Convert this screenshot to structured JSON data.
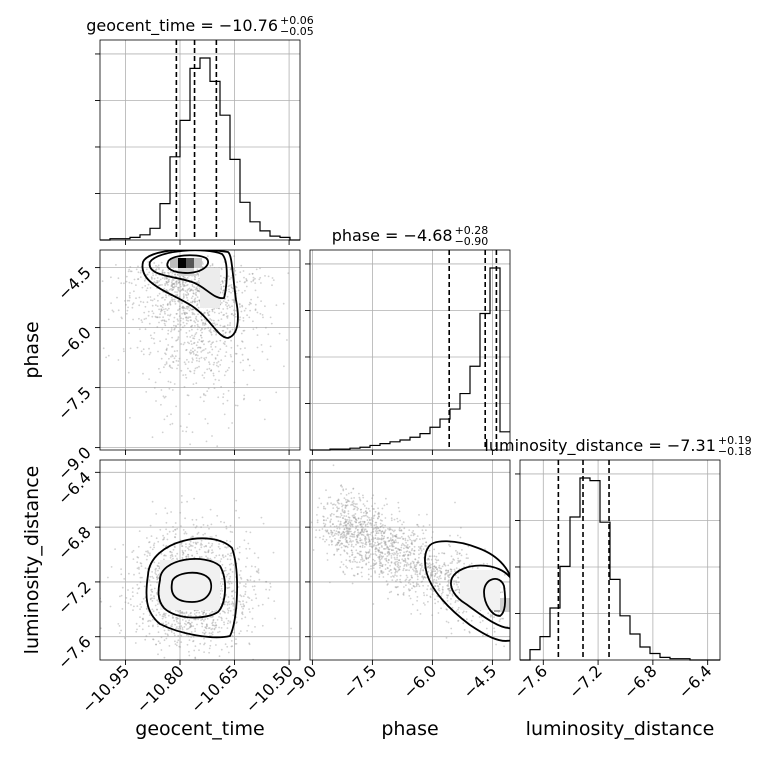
{
  "chart_data": {
    "type": "corner",
    "parameters": [
      "geocent_time",
      "phase",
      "luminosity_distance"
    ],
    "axis_labels": [
      "geocent_time",
      "phase",
      "luminosity_distance"
    ],
    "ranges": [
      [
        -11.02,
        -10.47
      ],
      [
        -9.06,
        -4.06
      ],
      [
        -7.77,
        -6.31
      ]
    ],
    "ticks": [
      [
        "−10.95",
        "−10.80",
        "−10.65",
        "−10.50"
      ],
      [
        "−9.0",
        "−7.5",
        "−6.0",
        "−4.5"
      ],
      [
        "−7.6",
        "−7.2",
        "−6.8",
        "−6.4"
      ]
    ],
    "tick_values": [
      [
        -10.95,
        -10.8,
        -10.65,
        -10.5
      ],
      [
        -9.0,
        -7.5,
        -6.0,
        -4.5
      ],
      [
        -7.6,
        -7.2,
        -6.8,
        -6.4
      ]
    ],
    "titles": [
      {
        "name": "geocent_time",
        "median": "−10.76",
        "plus": "+0.06",
        "minus": "−0.05"
      },
      {
        "name": "phase",
        "median": "−4.68",
        "plus": "+0.28",
        "minus": "−0.90"
      },
      {
        "name": "luminosity_distance",
        "median": "−7.31",
        "plus": "+0.19",
        "minus": "−0.18"
      }
    ],
    "quantiles": [
      [
        -10.81,
        -10.76,
        -10.7
      ],
      [
        -5.58,
        -4.68,
        -4.4
      ],
      [
        -7.49,
        -7.31,
        -7.12
      ]
    ],
    "histograms": [
      {
        "edges_start": -11.02,
        "bin_width": 0.0275,
        "counts": [
          0,
          1,
          1,
          2,
          4,
          9,
          28,
          64,
          92,
          132,
          140,
          122,
          96,
          62,
          29,
          14,
          7,
          3,
          2,
          0
        ]
      },
      {
        "edges_start": -9.06,
        "bin_width": 0.25,
        "counts": [
          0,
          0,
          1,
          1,
          2,
          3,
          5,
          7,
          9,
          11,
          14,
          18,
          25,
          34,
          45,
          62,
          92,
          150,
          200,
          20
        ]
      },
      {
        "edges_start": -7.77,
        "bin_width": 0.073,
        "counts": [
          0,
          8,
          18,
          40,
          72,
          110,
          140,
          138,
          106,
          62,
          34,
          20,
          10,
          5,
          2,
          1,
          1,
          0,
          0,
          0
        ]
      }
    ],
    "grid": true
  }
}
